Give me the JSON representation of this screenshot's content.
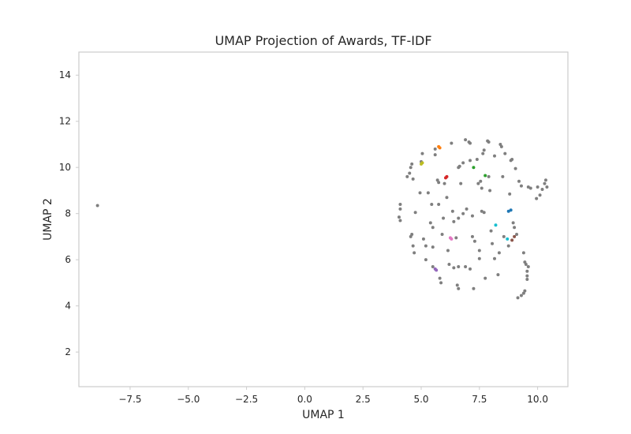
{
  "chart_data": {
    "type": "scatter",
    "title": "UMAP Projection of Awards, TF-IDF",
    "xlabel": "UMAP 1",
    "ylabel": "UMAP 2",
    "xlim": [
      -9.7,
      11.3
    ],
    "ylim": [
      0.5,
      15.0
    ],
    "xticks": [
      -7.5,
      -5.0,
      -2.5,
      0.0,
      2.5,
      5.0,
      7.5,
      10.0
    ],
    "xtick_labels": [
      "−7.5",
      "−5.0",
      "−2.5",
      "0.0",
      "2.5",
      "5.0",
      "7.5",
      "10.0"
    ],
    "yticks": [
      2,
      4,
      6,
      8,
      10,
      12,
      14
    ],
    "ytick_labels": [
      "2",
      "4",
      "6",
      "8",
      "10",
      "12",
      "14"
    ],
    "grid": false,
    "default_color": "#7f7f7f",
    "points": [
      {
        "x": -8.9,
        "y": 8.35
      },
      {
        "x": 4.1,
        "y": 8.4
      },
      {
        "x": 4.1,
        "y": 8.2
      },
      {
        "x": 4.05,
        "y": 7.85
      },
      {
        "x": 4.1,
        "y": 7.7
      },
      {
        "x": 4.4,
        "y": 9.6
      },
      {
        "x": 4.5,
        "y": 9.75
      },
      {
        "x": 4.55,
        "y": 10.0
      },
      {
        "x": 4.6,
        "y": 10.15
      },
      {
        "x": 4.65,
        "y": 9.5
      },
      {
        "x": 4.6,
        "y": 7.1
      },
      {
        "x": 4.55,
        "y": 7.0
      },
      {
        "x": 4.65,
        "y": 6.6
      },
      {
        "x": 4.7,
        "y": 6.3
      },
      {
        "x": 4.75,
        "y": 8.05
      },
      {
        "x": 4.95,
        "y": 8.9
      },
      {
        "x": 5.0,
        "y": 10.25
      },
      {
        "x": 5.05,
        "y": 10.6
      },
      {
        "x": 5.1,
        "y": 6.9
      },
      {
        "x": 5.2,
        "y": 6.0
      },
      {
        "x": 5.2,
        "y": 6.6
      },
      {
        "x": 5.3,
        "y": 8.9
      },
      {
        "x": 5.4,
        "y": 7.6
      },
      {
        "x": 5.45,
        "y": 8.4
      },
      {
        "x": 5.5,
        "y": 7.4
      },
      {
        "x": 5.5,
        "y": 6.55
      },
      {
        "x": 5.5,
        "y": 5.7
      },
      {
        "x": 5.6,
        "y": 10.8
      },
      {
        "x": 5.6,
        "y": 10.55
      },
      {
        "x": 5.7,
        "y": 9.45
      },
      {
        "x": 5.75,
        "y": 9.35
      },
      {
        "x": 5.75,
        "y": 8.4
      },
      {
        "x": 5.8,
        "y": 5.2
      },
      {
        "x": 5.85,
        "y": 5.0
      },
      {
        "x": 5.9,
        "y": 7.1
      },
      {
        "x": 5.95,
        "y": 7.8
      },
      {
        "x": 6.0,
        "y": 9.3
      },
      {
        "x": 6.1,
        "y": 8.7
      },
      {
        "x": 6.15,
        "y": 6.4
      },
      {
        "x": 6.2,
        "y": 5.8
      },
      {
        "x": 6.3,
        "y": 11.05
      },
      {
        "x": 6.35,
        "y": 8.1
      },
      {
        "x": 6.4,
        "y": 5.65
      },
      {
        "x": 6.4,
        "y": 7.65
      },
      {
        "x": 6.5,
        "y": 6.95
      },
      {
        "x": 6.55,
        "y": 4.9
      },
      {
        "x": 6.6,
        "y": 4.75
      },
      {
        "x": 6.6,
        "y": 5.7
      },
      {
        "x": 6.6,
        "y": 7.8
      },
      {
        "x": 6.6,
        "y": 10.0
      },
      {
        "x": 6.65,
        "y": 10.05
      },
      {
        "x": 6.7,
        "y": 9.3
      },
      {
        "x": 6.8,
        "y": 8.0
      },
      {
        "x": 6.8,
        "y": 10.2
      },
      {
        "x": 6.9,
        "y": 11.2
      },
      {
        "x": 6.9,
        "y": 5.7
      },
      {
        "x": 6.95,
        "y": 8.2
      },
      {
        "x": 7.05,
        "y": 11.1
      },
      {
        "x": 7.1,
        "y": 11.05
      },
      {
        "x": 7.1,
        "y": 10.3
      },
      {
        "x": 7.1,
        "y": 5.6
      },
      {
        "x": 7.2,
        "y": 7.9
      },
      {
        "x": 7.2,
        "y": 7.0
      },
      {
        "x": 7.25,
        "y": 4.75
      },
      {
        "x": 7.3,
        "y": 6.8
      },
      {
        "x": 7.4,
        "y": 10.35
      },
      {
        "x": 7.45,
        "y": 9.3
      },
      {
        "x": 7.5,
        "y": 6.4
      },
      {
        "x": 7.5,
        "y": 6.05
      },
      {
        "x": 7.55,
        "y": 9.4
      },
      {
        "x": 7.6,
        "y": 8.1
      },
      {
        "x": 7.6,
        "y": 9.1
      },
      {
        "x": 7.65,
        "y": 10.6
      },
      {
        "x": 7.7,
        "y": 10.75
      },
      {
        "x": 7.7,
        "y": 8.05
      },
      {
        "x": 7.75,
        "y": 5.2
      },
      {
        "x": 7.85,
        "y": 11.15
      },
      {
        "x": 7.9,
        "y": 11.1
      },
      {
        "x": 7.9,
        "y": 9.6
      },
      {
        "x": 7.95,
        "y": 9.0
      },
      {
        "x": 8.0,
        "y": 7.25
      },
      {
        "x": 8.05,
        "y": 6.7
      },
      {
        "x": 8.15,
        "y": 10.5
      },
      {
        "x": 8.15,
        "y": 6.05
      },
      {
        "x": 8.3,
        "y": 5.35
      },
      {
        "x": 8.35,
        "y": 6.3
      },
      {
        "x": 8.4,
        "y": 11.0
      },
      {
        "x": 8.45,
        "y": 10.9
      },
      {
        "x": 8.5,
        "y": 9.6
      },
      {
        "x": 8.55,
        "y": 7.0
      },
      {
        "x": 8.6,
        "y": 10.6
      },
      {
        "x": 8.75,
        "y": 6.6
      },
      {
        "x": 8.8,
        "y": 8.85
      },
      {
        "x": 8.85,
        "y": 10.3
      },
      {
        "x": 8.9,
        "y": 10.35
      },
      {
        "x": 8.95,
        "y": 7.6
      },
      {
        "x": 9.0,
        "y": 7.4
      },
      {
        "x": 9.05,
        "y": 9.95
      },
      {
        "x": 9.1,
        "y": 7.1
      },
      {
        "x": 9.15,
        "y": 4.35
      },
      {
        "x": 9.2,
        "y": 9.4
      },
      {
        "x": 9.3,
        "y": 4.45
      },
      {
        "x": 9.3,
        "y": 9.2
      },
      {
        "x": 9.4,
        "y": 4.55
      },
      {
        "x": 9.4,
        "y": 6.3
      },
      {
        "x": 9.45,
        "y": 4.65
      },
      {
        "x": 9.45,
        "y": 5.9
      },
      {
        "x": 9.5,
        "y": 5.8
      },
      {
        "x": 9.55,
        "y": 5.5
      },
      {
        "x": 9.55,
        "y": 5.3
      },
      {
        "x": 9.55,
        "y": 5.15
      },
      {
        "x": 9.6,
        "y": 5.7
      },
      {
        "x": 9.6,
        "y": 9.15
      },
      {
        "x": 9.7,
        "y": 9.1
      },
      {
        "x": 9.95,
        "y": 8.65
      },
      {
        "x": 10.0,
        "y": 9.15
      },
      {
        "x": 10.1,
        "y": 8.8
      },
      {
        "x": 10.2,
        "y": 9.05
      },
      {
        "x": 10.3,
        "y": 9.3
      },
      {
        "x": 10.35,
        "y": 9.45
      },
      {
        "x": 10.4,
        "y": 9.15
      },
      {
        "x": 5.75,
        "y": 10.9,
        "color": "#ff7f0e"
      },
      {
        "x": 5.8,
        "y": 10.85,
        "color": "#ff7f0e"
      },
      {
        "x": 5.0,
        "y": 10.15,
        "color": "#bcbd22"
      },
      {
        "x": 5.05,
        "y": 10.2,
        "color": "#bcbd22"
      },
      {
        "x": 6.05,
        "y": 9.55,
        "color": "#d62728"
      },
      {
        "x": 6.1,
        "y": 9.6,
        "color": "#d62728"
      },
      {
        "x": 7.25,
        "y": 10.0,
        "color": "#2ca02c"
      },
      {
        "x": 7.75,
        "y": 9.65,
        "color": "#2ca02c"
      },
      {
        "x": 8.75,
        "y": 8.1,
        "color": "#1f77b4"
      },
      {
        "x": 8.85,
        "y": 8.15,
        "color": "#1f77b4"
      },
      {
        "x": 8.2,
        "y": 7.5,
        "color": "#17becf"
      },
      {
        "x": 8.7,
        "y": 6.9,
        "color": "#17becf"
      },
      {
        "x": 9.0,
        "y": 7.0,
        "color": "#8c564b"
      },
      {
        "x": 8.9,
        "y": 6.85,
        "color": "#8c564b"
      },
      {
        "x": 6.25,
        "y": 6.95,
        "color": "#e377c2"
      },
      {
        "x": 6.3,
        "y": 6.9,
        "color": "#e377c2"
      },
      {
        "x": 5.6,
        "y": 5.6,
        "color": "#9467bd"
      },
      {
        "x": 5.65,
        "y": 5.55,
        "color": "#9467bd"
      }
    ]
  }
}
